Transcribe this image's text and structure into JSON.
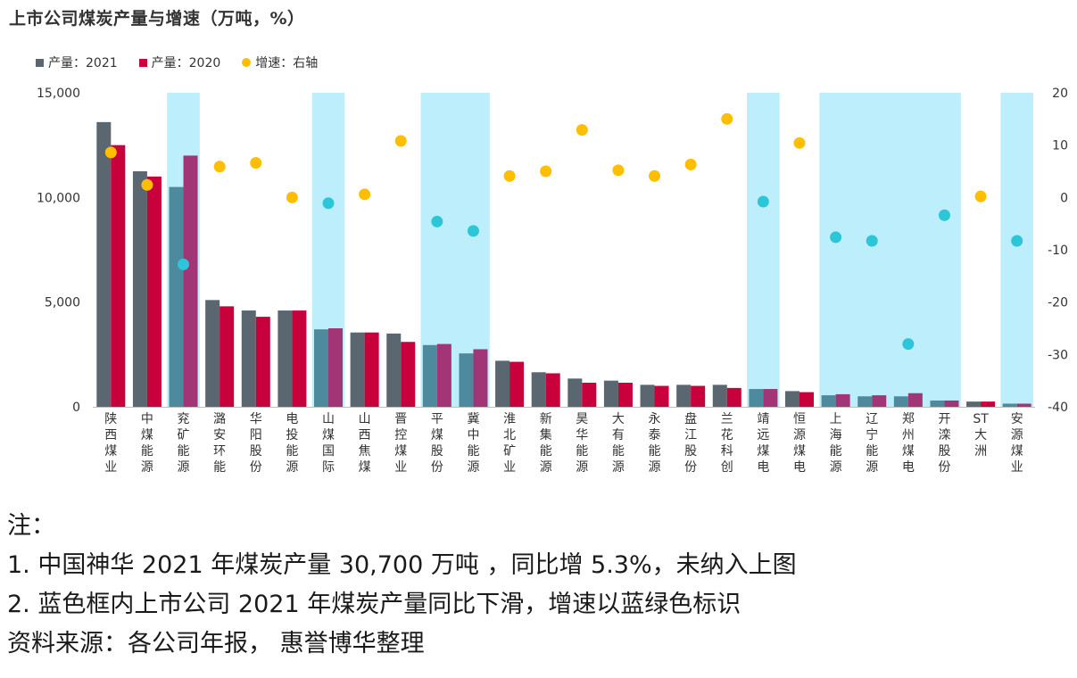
{
  "title": "上市公司煤炭产量与增速（万吨，%）",
  "legend": [
    {
      "label": "产量：2021",
      "color": "#5b6770",
      "shape": "square"
    },
    {
      "label": "产量：2020",
      "color": "#c8003c",
      "shape": "square"
    },
    {
      "label": "增速：右轴",
      "color": "#ffbe00",
      "shape": "circle"
    }
  ],
  "colors": {
    "bar_2021": "#5b6770",
    "bar_2020": "#c8003c",
    "highlight_band": "#bdeefb",
    "bar_2021_highlight": "#4d8a9d",
    "bar_2020_highlight": "#a13575",
    "dot_up": "#ffbe00",
    "dot_down": "#2cc6d8"
  },
  "chart_data": {
    "type": "bar",
    "categories": [
      "陕西煤业",
      "中煤能源",
      "兖矿能源",
      "潞安环能",
      "华阳股份",
      "电投能源",
      "山煤国际",
      "山西焦煤",
      "晋控煤业",
      "平煤股份",
      "冀中能源",
      "淮北矿业",
      "新集能源",
      "昊华能源",
      "大有能源",
      "永泰能源",
      "盘江股份",
      "兰花科创",
      "靖远煤电",
      "恒源煤电",
      "上海能源",
      "辽宁能源",
      "郑州煤电",
      "开滦股份",
      "ST大洲",
      "安源煤业"
    ],
    "series": [
      {
        "name": "产量：2021",
        "axis": "left",
        "values": [
          13600,
          11250,
          10500,
          5100,
          4600,
          4600,
          3700,
          3550,
          3500,
          2950,
          2550,
          2200,
          1650,
          1350,
          1250,
          1050,
          1050,
          1050,
          850,
          750,
          550,
          500,
          500,
          300,
          250,
          150
        ]
      },
      {
        "name": "产量：2020",
        "axis": "left",
        "values": [
          12500,
          11000,
          12000,
          4800,
          4300,
          4600,
          3750,
          3550,
          3100,
          3000,
          2750,
          2150,
          1600,
          1150,
          1150,
          1000,
          1000,
          900,
          850,
          700,
          600,
          550,
          650,
          300,
          250,
          150
        ]
      },
      {
        "name": "增速：右轴",
        "axis": "right",
        "type": "scatter",
        "values": [
          8.6,
          2.4,
          -12.8,
          5.9,
          6.6,
          0.0,
          -1.1,
          0.6,
          10.8,
          -4.6,
          -6.4,
          4.1,
          5.0,
          12.9,
          5.2,
          4.1,
          6.3,
          15.0,
          -0.8,
          10.4,
          -7.6,
          -8.3,
          -28.0,
          -3.4,
          0.2,
          -8.3
        ]
      }
    ],
    "declining": [
      false,
      false,
      true,
      false,
      false,
      false,
      true,
      false,
      false,
      true,
      true,
      false,
      false,
      false,
      false,
      false,
      false,
      false,
      true,
      false,
      true,
      true,
      true,
      true,
      false,
      true
    ],
    "ylim_left": [
      0,
      15000
    ],
    "yticks_left": [
      "0",
      "5,000",
      "10,000",
      "15,000"
    ],
    "ylim_right": [
      -40,
      20
    ],
    "yticks_right": [
      "-40",
      "-30",
      "-20",
      "-10",
      "0",
      "10",
      "20"
    ],
    "xlabel": "",
    "ylabel": ""
  },
  "notes": [
    "注：",
    "1. 中国神华 2021 年煤炭产量 30,700 万吨 ，同比增 5.3%，未纳入上图",
    "2. 蓝色框内上市公司 2021 年煤炭产量同比下滑，增速以蓝绿色标识",
    "资料来源：各公司年报， 惠誉博华整理"
  ]
}
